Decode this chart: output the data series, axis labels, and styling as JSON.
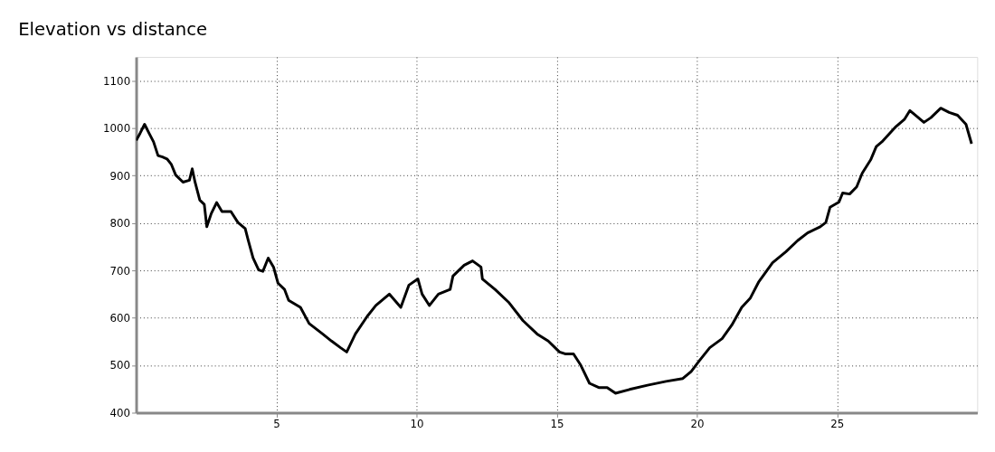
{
  "chart_data": {
    "type": "line",
    "title": "Elevation vs distance",
    "xlim": [
      0,
      30
    ],
    "ylim": [
      400,
      1150
    ],
    "xticks": [
      5,
      10,
      15,
      20,
      25
    ],
    "yticks": [
      400,
      500,
      600,
      700,
      800,
      900,
      1000,
      1100
    ],
    "grid": true,
    "line_style": "solid",
    "marker": "none",
    "series": [
      {
        "color": "#000000",
        "x": [
          0,
          0.14,
          0.3,
          0.46,
          0.62,
          0.78,
          0.94,
          1.1,
          1.25,
          1.41,
          1.67,
          1.9,
          2.0,
          2.1,
          2.27,
          2.43,
          2.52,
          2.68,
          2.87,
          3.06,
          3.38,
          3.63,
          3.89,
          4.0,
          4.17,
          4.37,
          4.52,
          4.71,
          4.9,
          5.06,
          5.29,
          5.44,
          5.86,
          6.17,
          6.65,
          6.97,
          7.29,
          7.51,
          7.82,
          8.24,
          8.55,
          9.03,
          9.44,
          9.73,
          10.05,
          10.2,
          10.46,
          10.78,
          11.2,
          11.3,
          11.7,
          12.0,
          12.3,
          12.35,
          12.8,
          13.3,
          13.8,
          14.3,
          14.7,
          15.1,
          15.3,
          15.6,
          15.86,
          16.17,
          16.5,
          16.8,
          17.1,
          17.6,
          18.24,
          18.9,
          19.5,
          19.8,
          20.08,
          20.46,
          20.9,
          21.25,
          21.6,
          21.9,
          22.2,
          22.7,
          23.17,
          23.6,
          23.95,
          24.4,
          24.6,
          24.75,
          25.07,
          25.2,
          25.45,
          25.7,
          25.9,
          26.2,
          26.4,
          26.6,
          27.1,
          27.4,
          27.6,
          27.9,
          28.1,
          28.35,
          28.7,
          29.0,
          29.3,
          29.6,
          29.8
        ],
        "values": [
          974,
          989,
          1008,
          989,
          971,
          942,
          939,
          935,
          924,
          901,
          886,
          890,
          914,
          886,
          848,
          839,
          792,
          820,
          843,
          824,
          824,
          801,
          788,
          763,
          726,
          701,
          698,
          726,
          707,
          673,
          660,
          637,
          622,
          588,
          566,
          551,
          537,
          528,
          566,
          603,
          626,
          650,
          622,
          669,
          682,
          650,
          626,
          650,
          660,
          688,
          711,
          720,
          707,
          682,
          660,
          632,
          594,
          566,
          551,
          528,
          524,
          524,
          500,
          462,
          453,
          453,
          441,
          449,
          458,
          466,
          472,
          487,
          509,
          537,
          556,
          585,
          622,
          641,
          675,
          716,
          739,
          763,
          779,
          792,
          801,
          833,
          844,
          863,
          861,
          876,
          905,
          933,
          961,
          971,
          1003,
          1018,
          1037,
          1022,
          1012,
          1022,
          1042,
          1033,
          1027,
          1008,
          967
        ]
      }
    ]
  }
}
